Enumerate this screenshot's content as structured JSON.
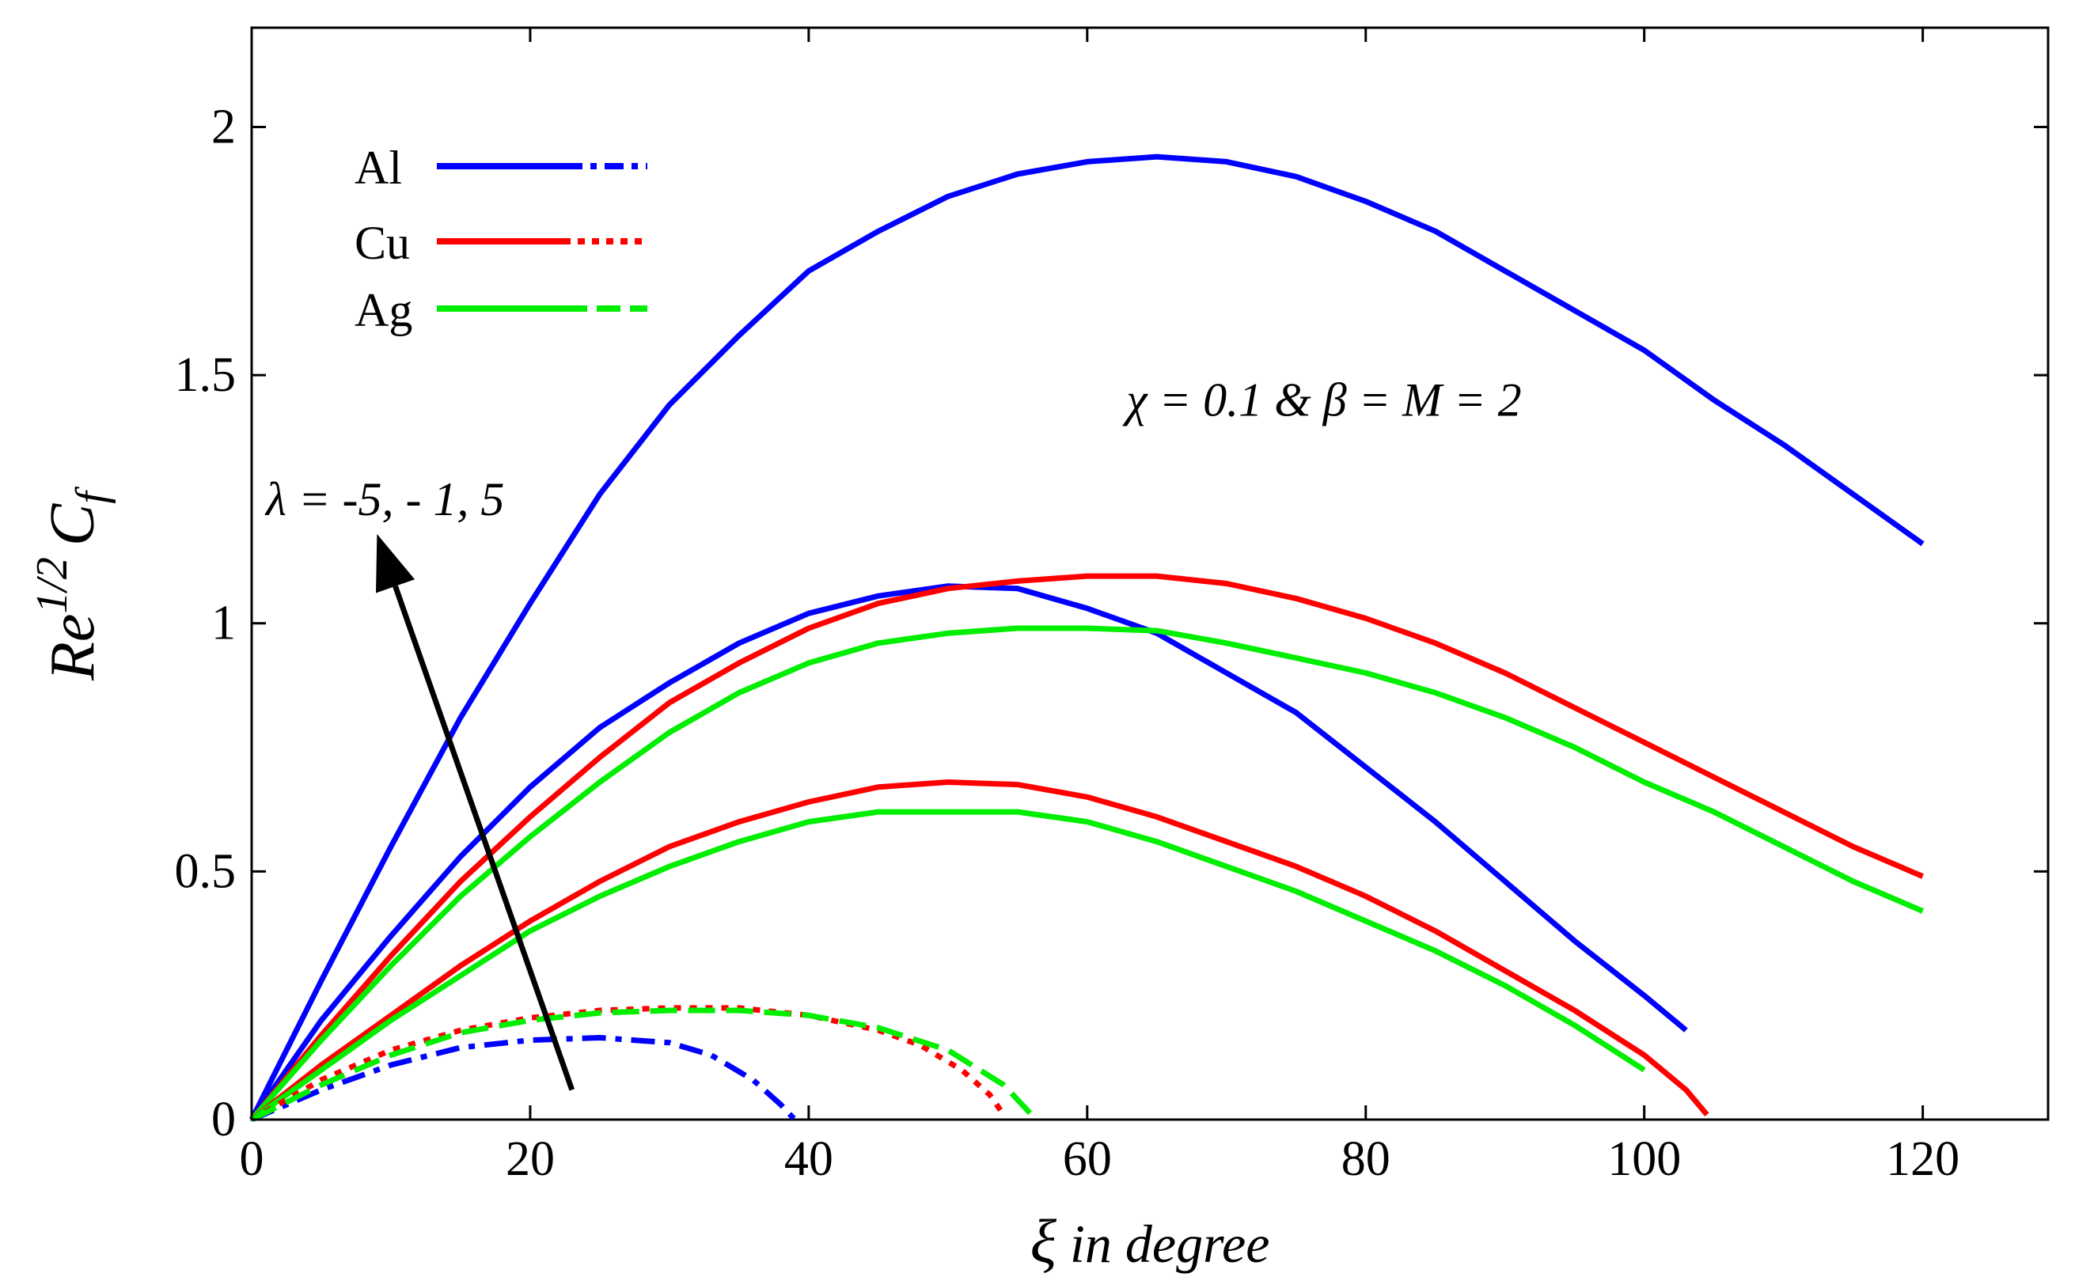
{
  "chart_data": {
    "type": "line",
    "title": "",
    "xlabel": {
      "symbol": "ξ",
      "text": " in degree"
    },
    "ylabel": {
      "base": "Re",
      "exp": "1/2",
      "base2": "C",
      "sub": "f"
    },
    "xlim": [
      0,
      129
    ],
    "ylim": [
      0,
      2.2
    ],
    "xticks": [
      0,
      20,
      40,
      60,
      80,
      100,
      120
    ],
    "yticks": [
      0,
      0.5,
      1,
      1.5,
      2
    ],
    "ytick_labels": [
      "0",
      "0.5",
      "1",
      "1.5",
      "2"
    ],
    "grid": false,
    "legend": {
      "position": "top-left",
      "entries": [
        {
          "label": "Al",
          "color": "#0000ff",
          "dash_style": "dashdot"
        },
        {
          "label": "Cu",
          "color": "#ff0000",
          "dash_style": "dot"
        },
        {
          "label": "Ag",
          "color": "#00ee00",
          "dash_style": "dash"
        }
      ]
    },
    "annotations": [
      {
        "text": "χ = 0.1  & β = M = 2",
        "x": 77,
        "y": 1.45
      },
      {
        "text": "λ = -5, - 1, 5",
        "x": 5,
        "y": 1.25
      }
    ],
    "arrow": {
      "from": [
        23,
        0.06
      ],
      "to": [
        9,
        1.18
      ],
      "label": "λ = -5, - 1, 5"
    },
    "series": [
      {
        "name": "Al λ=5",
        "color": "#0000ff",
        "style": "solid",
        "points": [
          [
            0,
            0
          ],
          [
            5,
            0.28
          ],
          [
            10,
            0.55
          ],
          [
            15,
            0.81
          ],
          [
            20,
            1.04
          ],
          [
            25,
            1.26
          ],
          [
            30,
            1.44
          ],
          [
            35,
            1.58
          ],
          [
            40,
            1.71
          ],
          [
            45,
            1.79
          ],
          [
            50,
            1.86
          ],
          [
            55,
            1.905
          ],
          [
            60,
            1.93
          ],
          [
            65,
            1.94
          ],
          [
            70,
            1.93
          ],
          [
            75,
            1.9
          ],
          [
            80,
            1.85
          ],
          [
            85,
            1.79
          ],
          [
            90,
            1.71
          ],
          [
            95,
            1.63
          ],
          [
            100,
            1.55
          ],
          [
            105,
            1.45
          ],
          [
            110,
            1.36
          ],
          [
            115,
            1.26
          ],
          [
            120,
            1.16
          ]
        ]
      },
      {
        "name": "Al λ=-1",
        "color": "#0000ff",
        "style": "solid",
        "points": [
          [
            0,
            0
          ],
          [
            5,
            0.2
          ],
          [
            10,
            0.37
          ],
          [
            15,
            0.53
          ],
          [
            20,
            0.67
          ],
          [
            25,
            0.79
          ],
          [
            30,
            0.88
          ],
          [
            35,
            0.96
          ],
          [
            40,
            1.02
          ],
          [
            45,
            1.055
          ],
          [
            50,
            1.075
          ],
          [
            55,
            1.07
          ],
          [
            60,
            1.03
          ],
          [
            65,
            0.98
          ],
          [
            70,
            0.9
          ],
          [
            75,
            0.82
          ],
          [
            80,
            0.71
          ],
          [
            85,
            0.6
          ],
          [
            90,
            0.48
          ],
          [
            95,
            0.36
          ],
          [
            100,
            0.25
          ],
          [
            103,
            0.18
          ]
        ]
      },
      {
        "name": "Cu λ=-1",
        "color": "#ff0000",
        "style": "solid",
        "points": [
          [
            0,
            0
          ],
          [
            5,
            0.17
          ],
          [
            10,
            0.33
          ],
          [
            15,
            0.48
          ],
          [
            20,
            0.61
          ],
          [
            25,
            0.73
          ],
          [
            30,
            0.84
          ],
          [
            35,
            0.92
          ],
          [
            40,
            0.99
          ],
          [
            45,
            1.04
          ],
          [
            50,
            1.07
          ],
          [
            55,
            1.085
          ],
          [
            60,
            1.095
          ],
          [
            65,
            1.095
          ],
          [
            70,
            1.08
          ],
          [
            75,
            1.05
          ],
          [
            80,
            1.01
          ],
          [
            85,
            0.96
          ],
          [
            90,
            0.9
          ],
          [
            95,
            0.83
          ],
          [
            100,
            0.76
          ],
          [
            105,
            0.69
          ],
          [
            110,
            0.62
          ],
          [
            115,
            0.55
          ],
          [
            120,
            0.49
          ]
        ]
      },
      {
        "name": "Ag λ=-1",
        "color": "#00ee00",
        "style": "solid",
        "points": [
          [
            0,
            0
          ],
          [
            5,
            0.16
          ],
          [
            10,
            0.31
          ],
          [
            15,
            0.45
          ],
          [
            20,
            0.57
          ],
          [
            25,
            0.68
          ],
          [
            30,
            0.78
          ],
          [
            35,
            0.86
          ],
          [
            40,
            0.92
          ],
          [
            45,
            0.96
          ],
          [
            50,
            0.98
          ],
          [
            55,
            0.99
          ],
          [
            60,
            0.99
          ],
          [
            65,
            0.985
          ],
          [
            70,
            0.96
          ],
          [
            75,
            0.93
          ],
          [
            80,
            0.9
          ],
          [
            85,
            0.86
          ],
          [
            90,
            0.81
          ],
          [
            95,
            0.75
          ],
          [
            100,
            0.68
          ],
          [
            105,
            0.62
          ],
          [
            110,
            0.55
          ],
          [
            115,
            0.48
          ],
          [
            120,
            0.42
          ]
        ]
      },
      {
        "name": "Cu λ=-5",
        "color": "#ff0000",
        "style": "solid",
        "points": [
          [
            0,
            0
          ],
          [
            5,
            0.11
          ],
          [
            10,
            0.21
          ],
          [
            15,
            0.31
          ],
          [
            20,
            0.4
          ],
          [
            25,
            0.48
          ],
          [
            30,
            0.55
          ],
          [
            35,
            0.6
          ],
          [
            40,
            0.64
          ],
          [
            45,
            0.67
          ],
          [
            50,
            0.68
          ],
          [
            55,
            0.675
          ],
          [
            60,
            0.65
          ],
          [
            65,
            0.61
          ],
          [
            70,
            0.56
          ],
          [
            75,
            0.51
          ],
          [
            80,
            0.45
          ],
          [
            85,
            0.38
          ],
          [
            90,
            0.3
          ],
          [
            95,
            0.22
          ],
          [
            100,
            0.13
          ],
          [
            103,
            0.06
          ],
          [
            104.5,
            0.01
          ]
        ]
      },
      {
        "name": "Ag λ=-5",
        "color": "#00ee00",
        "style": "solid",
        "points": [
          [
            0,
            0
          ],
          [
            5,
            0.1
          ],
          [
            10,
            0.2
          ],
          [
            15,
            0.29
          ],
          [
            20,
            0.38
          ],
          [
            25,
            0.45
          ],
          [
            30,
            0.51
          ],
          [
            35,
            0.56
          ],
          [
            40,
            0.6
          ],
          [
            45,
            0.62
          ],
          [
            50,
            0.62
          ],
          [
            55,
            0.62
          ],
          [
            60,
            0.6
          ],
          [
            65,
            0.56
          ],
          [
            70,
            0.51
          ],
          [
            75,
            0.46
          ],
          [
            80,
            0.4
          ],
          [
            85,
            0.34
          ],
          [
            90,
            0.27
          ],
          [
            95,
            0.19
          ],
          [
            100,
            0.1
          ]
        ]
      },
      {
        "name": "Al dashed",
        "color": "#0000ff",
        "style": "dashdot",
        "points": [
          [
            0,
            0
          ],
          [
            5,
            0.06
          ],
          [
            10,
            0.11
          ],
          [
            15,
            0.145
          ],
          [
            20,
            0.16
          ],
          [
            25,
            0.165
          ],
          [
            30,
            0.155
          ],
          [
            33,
            0.13
          ],
          [
            36,
            0.08
          ],
          [
            38,
            0.03
          ],
          [
            39,
            0.0
          ]
        ]
      },
      {
        "name": "Cu dotted",
        "color": "#ff0000",
        "style": "dot",
        "points": [
          [
            0,
            0
          ],
          [
            5,
            0.08
          ],
          [
            10,
            0.14
          ],
          [
            15,
            0.18
          ],
          [
            20,
            0.205
          ],
          [
            25,
            0.22
          ],
          [
            30,
            0.225
          ],
          [
            35,
            0.225
          ],
          [
            40,
            0.21
          ],
          [
            45,
            0.18
          ],
          [
            48,
            0.15
          ],
          [
            51,
            0.1
          ],
          [
            53,
            0.05
          ],
          [
            54,
            0.01
          ]
        ]
      },
      {
        "name": "Ag dashed",
        "color": "#00ee00",
        "style": "dash",
        "points": [
          [
            0,
            0
          ],
          [
            5,
            0.07
          ],
          [
            10,
            0.13
          ],
          [
            15,
            0.175
          ],
          [
            20,
            0.2
          ],
          [
            25,
            0.215
          ],
          [
            30,
            0.22
          ],
          [
            35,
            0.22
          ],
          [
            40,
            0.21
          ],
          [
            45,
            0.185
          ],
          [
            50,
            0.14
          ],
          [
            54,
            0.07
          ],
          [
            56,
            0.01
          ]
        ]
      }
    ]
  }
}
